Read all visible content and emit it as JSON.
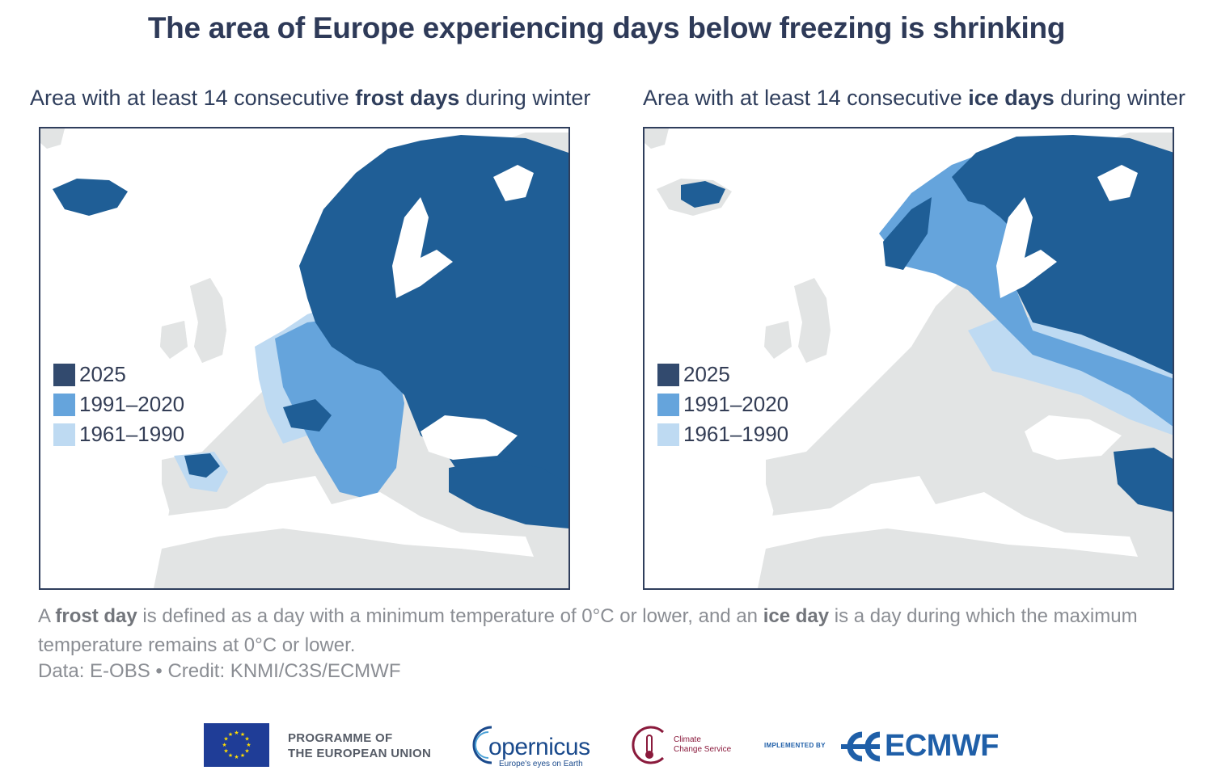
{
  "title": "The area of Europe experiencing days below freezing is shrinking",
  "left_panel": {
    "subtitle_prefix": "Area with at least 14 consecutive ",
    "subtitle_bold": "frost days",
    "subtitle_suffix": " during winter"
  },
  "right_panel": {
    "subtitle_prefix": "Area with at least 14 consecutive ",
    "subtitle_bold": "ice days",
    "subtitle_suffix": " during winter"
  },
  "legend": [
    {
      "label": "2025",
      "color": "#324a6e"
    },
    {
      "label": "1991–2020",
      "color": "#65a4dc"
    },
    {
      "label": "1961–1990",
      "color": "#bedaf2"
    }
  ],
  "colors": {
    "land_background": "#e2e4e4",
    "sea": "#ffffff",
    "frost_extent": "#1f5e96",
    "border": "#2f3e5c"
  },
  "note": {
    "part1": "A ",
    "bold1": "frost day",
    "part2": " is defined as a day with a minimum temperature of 0°C or lower, and an ",
    "bold2": "ice day",
    "part3": " is a day during which the maximum temperature remains at 0°C or lower."
  },
  "credit": "Data: E-OBS • Credit: KNMI/C3S/ECMWF",
  "logos": {
    "eu_line1": "PROGRAMME OF",
    "eu_line2": "THE EUROPEAN UNION",
    "copernicus_name": "opernicus",
    "copernicus_tagline": "Europe's eyes on Earth",
    "c3s_line1": "Climate",
    "c3s_line2": "Change Service",
    "implemented_by": "IMPLEMENTED BY",
    "ecmwf_name": "ECMWF"
  }
}
